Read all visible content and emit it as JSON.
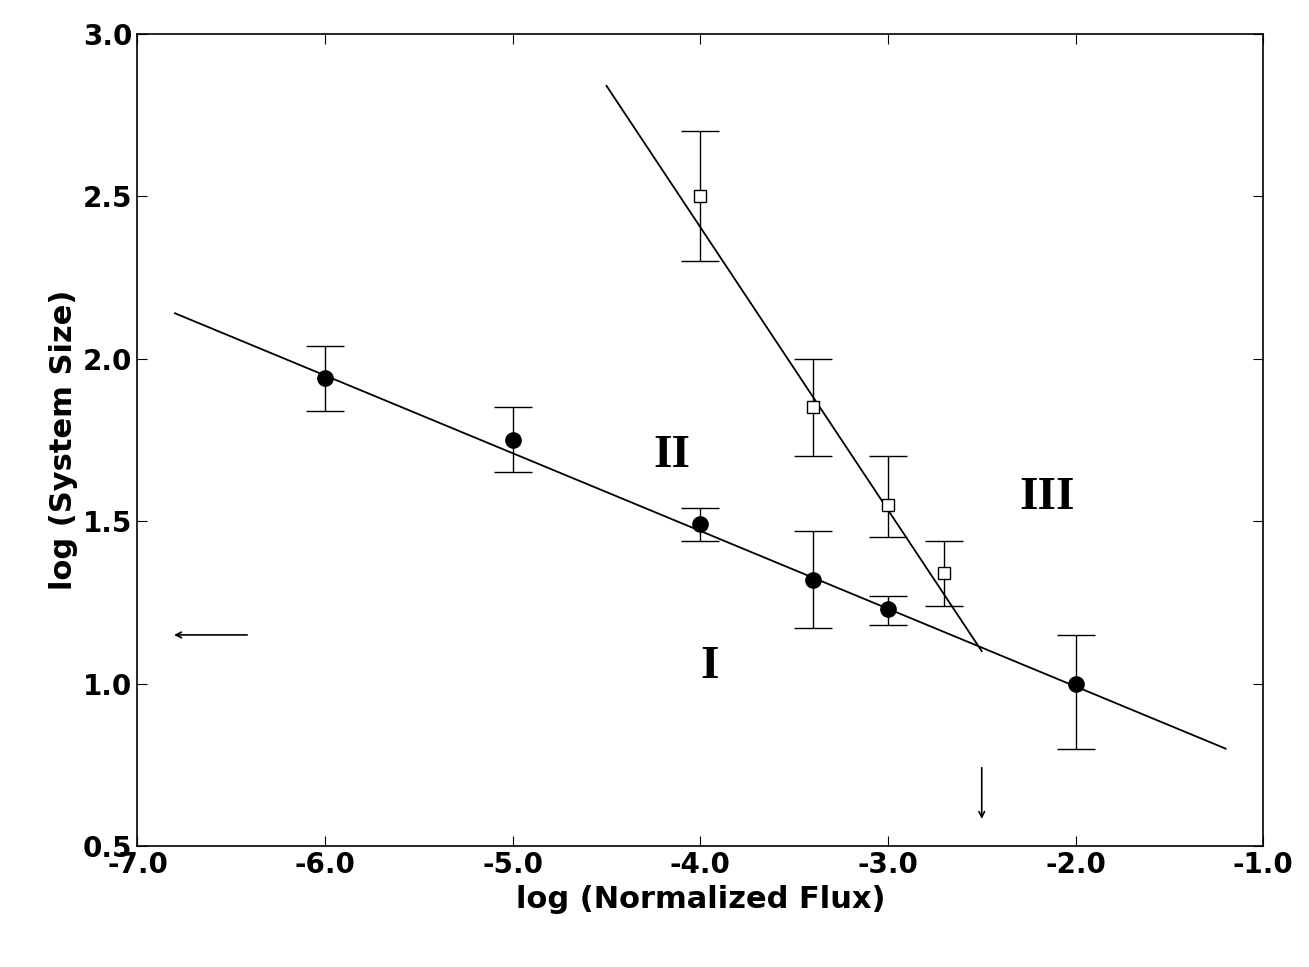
{
  "chart_data": {
    "type": "scatter",
    "x_label": "log (Normalized Flux)",
    "y_label": "log (System Size)",
    "xlim": [
      -7.0,
      -1.0
    ],
    "ylim": [
      0.5,
      3.0
    ],
    "xticks": [
      {
        "value": -7.0,
        "label": "-7.0"
      },
      {
        "value": -6.0,
        "label": "-6.0"
      },
      {
        "value": -5.0,
        "label": "-5.0"
      },
      {
        "value": -4.0,
        "label": "-4.0"
      },
      {
        "value": -3.0,
        "label": "-3.0"
      },
      {
        "value": -2.0,
        "label": "-2.0"
      },
      {
        "value": -1.0,
        "label": "-1.0"
      }
    ],
    "yticks": [
      {
        "value": 0.5,
        "label": "0.5"
      },
      {
        "value": 1.0,
        "label": "1.0"
      },
      {
        "value": 1.5,
        "label": "1.5"
      },
      {
        "value": 2.0,
        "label": "2.0"
      },
      {
        "value": 2.5,
        "label": "2.5"
      },
      {
        "value": 3.0,
        "label": "3.0"
      }
    ],
    "grid": false,
    "series": [
      {
        "type": "scatter",
        "marker": "circle_filled",
        "color": "#000000",
        "x": [
          -6.0,
          -5.0,
          -4.0,
          -3.4,
          -3.0,
          -2.0
        ],
        "values": [
          1.94,
          1.75,
          1.49,
          1.32,
          1.23,
          1.0
        ],
        "error_low": [
          0.1,
          0.1,
          0.05,
          0.15,
          0.05,
          0.2
        ],
        "error_high": [
          0.1,
          0.1,
          0.05,
          0.15,
          0.04,
          0.15
        ]
      },
      {
        "type": "scatter",
        "marker": "square_open",
        "color": "#000000",
        "x": [
          -4.0,
          -3.4,
          -3.0,
          -2.7
        ],
        "values": [
          2.5,
          1.85,
          1.55,
          1.34
        ],
        "error_low": [
          0.2,
          0.15,
          0.1,
          0.1
        ],
        "error_high": [
          0.2,
          0.15,
          0.15,
          0.1
        ]
      },
      {
        "type": "line",
        "line_style": "solid",
        "color": "#000000",
        "x": [
          -6.8,
          -1.2
        ],
        "values": [
          2.14,
          0.8
        ]
      },
      {
        "type": "line",
        "line_style": "solid",
        "color": "#000000",
        "x": [
          -4.5,
          -2.5
        ],
        "values": [
          2.84,
          1.1
        ]
      }
    ],
    "annotations": [
      {
        "text": "I",
        "x": -3.95,
        "y": 1.05
      },
      {
        "text": "II",
        "x": -4.15,
        "y": 1.7
      },
      {
        "text": "III",
        "x": -2.15,
        "y": 1.57
      }
    ],
    "arrows": [
      {
        "direction": "left",
        "y": 1.15
      },
      {
        "direction": "down",
        "x": -2.5
      }
    ]
  }
}
